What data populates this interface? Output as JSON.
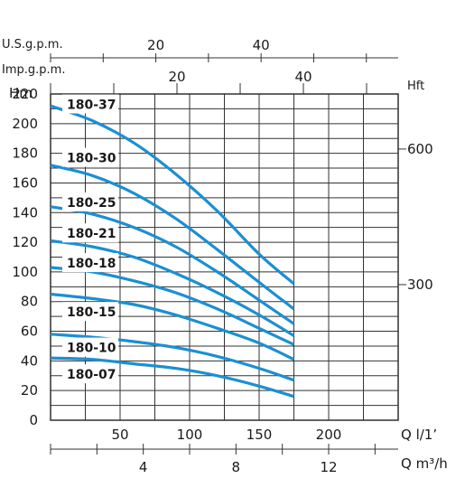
{
  "chart_data": {
    "type": "line",
    "title": "",
    "y_axis": {
      "label": "Hm",
      "range": [
        0,
        220
      ],
      "ticks": [
        "0",
        "20",
        "40",
        "60",
        "80",
        "100",
        "120",
        "140",
        "160",
        "180",
        "200",
        "220"
      ]
    },
    "y2_axis": {
      "label": "Hft",
      "ticks": [
        {
          "label": "300",
          "value": 91.44
        },
        {
          "label": "600",
          "value": 182.88
        }
      ]
    },
    "x_axis": {
      "label": "Q l/1’",
      "range": [
        0,
        250
      ],
      "ticks": [
        "50",
        "100",
        "150",
        "200"
      ]
    },
    "x2_axis": {
      "label": "Q m³/h",
      "range": [
        0,
        15
      ],
      "ticks": [
        "4",
        "8",
        "12"
      ]
    },
    "top_axis_us": {
      "label": "U.S.g.p.m.",
      "range": [
        0,
        66.05
      ],
      "ticks": [
        "20",
        "40"
      ]
    },
    "top_axis_imp": {
      "label": "Imp.g.p.m.",
      "range": [
        0,
        55
      ],
      "ticks": [
        "20",
        "40"
      ]
    },
    "grid": true,
    "line_color": "#1b8fd2",
    "series": [
      {
        "name": "180-37",
        "x": [
          0,
          30,
          60,
          90,
          120,
          150,
          175
        ],
        "y": [
          212,
          202,
          187,
          166,
          141,
          112,
          92
        ]
      },
      {
        "name": "180-30",
        "x": [
          0,
          30,
          60,
          90,
          120,
          150,
          175
        ],
        "y": [
          172,
          165,
          153,
          136,
          115,
          93,
          75
        ]
      },
      {
        "name": "180-25",
        "x": [
          0,
          30,
          60,
          90,
          120,
          150,
          175
        ],
        "y": [
          144,
          139,
          130,
          117,
          100,
          81,
          65
        ]
      },
      {
        "name": "180-21",
        "x": [
          0,
          30,
          60,
          90,
          120,
          150,
          175
        ],
        "y": [
          121,
          117,
          110,
          99,
          86,
          71,
          57
        ]
      },
      {
        "name": "180-18",
        "x": [
          0,
          30,
          60,
          90,
          120,
          150,
          175
        ],
        "y": [
          103,
          100,
          94,
          86,
          75,
          62,
          51
        ]
      },
      {
        "name": "180-15",
        "x": [
          0,
          30,
          60,
          90,
          120,
          150,
          175
        ],
        "y": [
          85,
          82,
          78,
          71,
          62,
          52,
          41
        ]
      },
      {
        "name": "180-10",
        "x": [
          0,
          30,
          60,
          90,
          120,
          150,
          175
        ],
        "y": [
          58,
          56,
          53,
          49,
          43,
          35,
          27
        ]
      },
      {
        "name": "180-07",
        "x": [
          0,
          30,
          60,
          90,
          120,
          150,
          175
        ],
        "y": [
          42,
          41,
          38,
          35,
          30,
          23,
          16
        ]
      }
    ],
    "label_y": [
      213,
      177,
      147,
      126,
      106,
      73,
      49,
      31
    ]
  }
}
